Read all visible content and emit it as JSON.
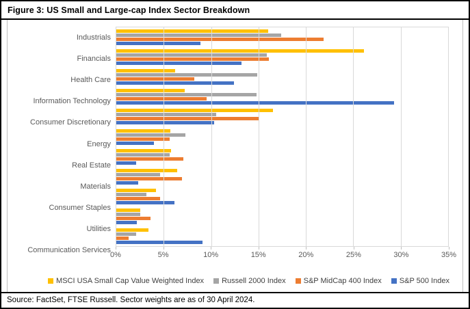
{
  "title": "Figure 3: US Small and Large-cap Index Sector Breakdown",
  "footer": "Source: FactSet, FTSE Russell. Sector weights are as of 30 April 2024.",
  "colors": {
    "series_yellow": "#FFC000",
    "series_gray": "#A5A5A5",
    "series_orange": "#ED7D31",
    "series_blue": "#4472C4",
    "gridline": "#D9D9D9",
    "axis_text": "#595959"
  },
  "chart_data": {
    "type": "bar",
    "orientation": "horizontal",
    "title": "Figure 3: US Small and Large-cap Index Sector Breakdown",
    "categories": [
      "Industrials",
      "Financials",
      "Health Care",
      "Information Technology",
      "Consumer Discretionary",
      "Energy",
      "Real Estate",
      "Materials",
      "Consumer Staples",
      "Utilities",
      "Communication Services"
    ],
    "series": [
      {
        "name": "MSCI USA Small Cap Value Weighted Index",
        "color": "#FFC000",
        "values": [
          16.0,
          26.1,
          6.2,
          7.2,
          16.5,
          5.7,
          5.8,
          6.4,
          4.2,
          2.5,
          3.4
        ]
      },
      {
        "name": "Russell 2000 Index",
        "color": "#A5A5A5",
        "values": [
          17.4,
          15.9,
          14.9,
          14.8,
          10.5,
          7.3,
          5.6,
          4.6,
          3.2,
          2.5,
          2.1
        ]
      },
      {
        "name": "S&P MidCap 400 Index",
        "color": "#ED7D31",
        "values": [
          21.9,
          16.1,
          8.2,
          9.5,
          15.1,
          5.6,
          7.1,
          6.9,
          4.6,
          3.6,
          1.3
        ]
      },
      {
        "name": "S&P 500 Index",
        "color": "#4472C4",
        "values": [
          8.9,
          13.2,
          12.4,
          29.3,
          10.3,
          4.0,
          2.1,
          2.3,
          6.1,
          2.2,
          9.1
        ]
      }
    ],
    "xlim": [
      0,
      35
    ],
    "x_tick_step": 5,
    "x_tick_labels": [
      "0%",
      "5%",
      "10%",
      "15%",
      "20%",
      "25%",
      "30%",
      "35%"
    ],
    "grid": true,
    "legend_position": "bottom",
    "units": "percent"
  }
}
